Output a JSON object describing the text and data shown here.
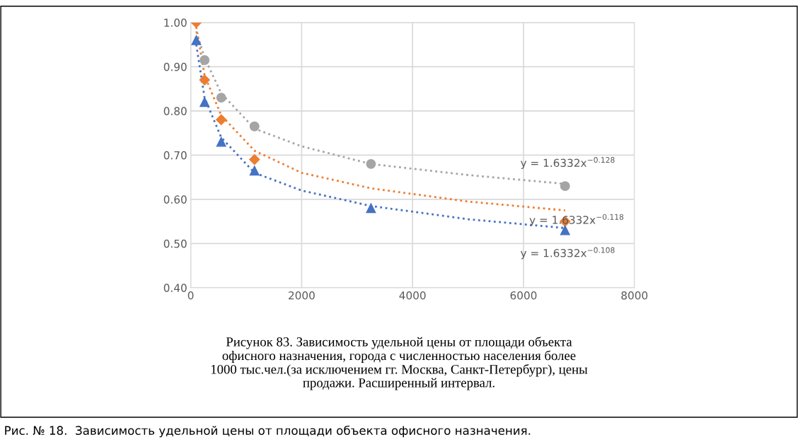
{
  "chart_data": {
    "type": "scatter",
    "xlim": [
      0,
      8000
    ],
    "xticks": [
      0,
      2000,
      4000,
      6000,
      8000
    ],
    "ylim": [
      0.4,
      1.0
    ],
    "yticks": [
      {
        "value": 0.4,
        "label": "0.40"
      },
      {
        "value": 0.5,
        "label": "0.50"
      },
      {
        "value": 0.6,
        "label": "0.60"
      },
      {
        "value": 0.7,
        "label": "0.70"
      },
      {
        "value": 0.8,
        "label": "0.80"
      },
      {
        "value": 0.9,
        "label": "0.90"
      },
      {
        "value": 1.0,
        "label": "1.00"
      }
    ],
    "grid": true,
    "x": [
      100,
      250,
      550,
      1150,
      3250,
      6750
    ],
    "series": [
      {
        "color": "#a5a5a5",
        "marker": "circle",
        "values": [
          null,
          0.915,
          0.83,
          0.765,
          0.68,
          0.63
        ]
      },
      {
        "color": "#ed7d31",
        "marker": "diamond",
        "values": [
          1.0,
          0.87,
          0.78,
          0.69,
          null,
          0.55
        ]
      },
      {
        "color": "#4472c4",
        "marker": "triangle",
        "values": [
          0.96,
          0.82,
          0.73,
          0.665,
          0.58,
          0.53
        ]
      },
      {
        "type": "line",
        "color": "#a5a5a5",
        "line_style": "dotted",
        "x": [
          100,
          250,
          550,
          1150,
          2000,
          3250,
          5000,
          6750
        ],
        "values": [
          0.98,
          0.92,
          0.84,
          0.76,
          0.72,
          0.68,
          0.655,
          0.635
        ]
      },
      {
        "type": "line",
        "color": "#ed7d31",
        "line_style": "dotted",
        "x": [
          100,
          250,
          550,
          1150,
          2000,
          3250,
          5000,
          6750
        ],
        "values": [
          0.99,
          0.88,
          0.79,
          0.71,
          0.66,
          0.625,
          0.595,
          0.575
        ]
      },
      {
        "type": "line",
        "color": "#4472c4",
        "line_style": "dotted",
        "x": [
          100,
          250,
          550,
          1150,
          2000,
          3250,
          5000,
          6750
        ],
        "values": [
          0.95,
          0.83,
          0.74,
          0.66,
          0.62,
          0.585,
          0.555,
          0.535
        ]
      }
    ],
    "annotations": [
      "y = 1.6332x$^{−0.128}$",
      "y = 1.6332x$^{−0.118}$",
      "y = 1.6332x$^{−0.108}$",
      "Рисунок 83. Зависимость удельной цены от площади объекта\nофисного назначения, города с численностью населения более\n1000 тыс.чел.(за исключением гг. Москва, Санкт-Петербург), цены\nпродажи. Расширенный интервал.",
      "Рис. № 18.  Зависимость удельной цены от площади объекта офисного назначения."
    ]
  }
}
